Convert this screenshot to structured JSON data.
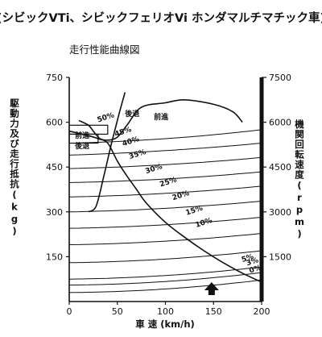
{
  "header": {
    "title": "(シビックVTi、シビックフェリオVi ホンダマルチマチック車)"
  },
  "chart_data": {
    "type": "line",
    "title": "走行性能曲線図",
    "xlabel": "車 速 (km/h)",
    "ylabel_left": "駆動力 及び 走行抵抗 (kg)",
    "ylabel_right": "機関回転速度 (rpm)",
    "xlim": [
      0,
      200
    ],
    "ylim_left": [
      0,
      750
    ],
    "ylim_right": [
      0,
      7500
    ],
    "x_ticks": [
      "0",
      "50",
      "100",
      "150",
      "200"
    ],
    "y_ticks_left": [
      "150",
      "300",
      "450",
      "600",
      "750"
    ],
    "y_ticks_right": [
      "1500",
      "3000",
      "4500",
      "6000",
      "7500"
    ],
    "grid": false,
    "series": [
      {
        "name": "前進",
        "axis": "right",
        "x": [
          10,
          20,
          25,
          32,
          40,
          50,
          60,
          75,
          100,
          120,
          150,
          170,
          180
        ],
        "y": [
          6060,
          5900,
          5700,
          5450,
          5400,
          5500,
          5900,
          6500,
          6650,
          6750,
          6600,
          6350,
          6000
        ]
      },
      {
        "name": "後退",
        "axis": "right",
        "x": [
          20,
          28,
          36,
          44,
          52,
          58
        ],
        "y": [
          3000,
          3200,
          4200,
          5300,
          6300,
          7000
        ]
      }
    ],
    "tractive_force_envelope": {
      "x": [
        0,
        20,
        30,
        40,
        50,
        60,
        70,
        80,
        100,
        120,
        140,
        160,
        180,
        200
      ],
      "y": [
        570,
        555,
        545,
        530,
        470,
        420,
        375,
        330,
        265,
        215,
        170,
        130,
        95,
        65
      ]
    },
    "resistance_curves": [
      {
        "label": "50%",
        "y": [
          530,
          545,
          575
        ]
      },
      {
        "label": "45%",
        "y": [
          490,
          505,
          530
        ]
      },
      {
        "label": "40%",
        "y": [
          445,
          458,
          482
        ]
      },
      {
        "label": "35%",
        "y": [
          398,
          410,
          434
        ]
      },
      {
        "label": "30%",
        "y": [
          350,
          362,
          386
        ]
      },
      {
        "label": "25%",
        "y": [
          300,
          312,
          336
        ]
      },
      {
        "label": "20%",
        "y": [
          245,
          257,
          282
        ]
      },
      {
        "label": "15%",
        "y": [
          190,
          202,
          228
        ]
      },
      {
        "label": "10%",
        "y": [
          130,
          142,
          170
        ]
      },
      {
        "label": "5%",
        "y": [
          75,
          87,
          116
        ]
      },
      {
        "label": "3%",
        "y": [
          55,
          67,
          97
        ]
      },
      {
        "label": "0%",
        "y": [
          30,
          42,
          72
        ]
      }
    ],
    "resistance_x": [
      0,
      100,
      200
    ],
    "annotations": [
      {
        "text": "後退",
        "x": 58,
        "y": 620
      },
      {
        "text": "前進",
        "x": 88,
        "y": 610
      },
      {
        "text": "前進",
        "x": 6,
        "y": 548
      },
      {
        "text": "後退",
        "x": 6,
        "y": 512
      }
    ],
    "marker": {
      "label": "arrow",
      "x": 148
    }
  }
}
